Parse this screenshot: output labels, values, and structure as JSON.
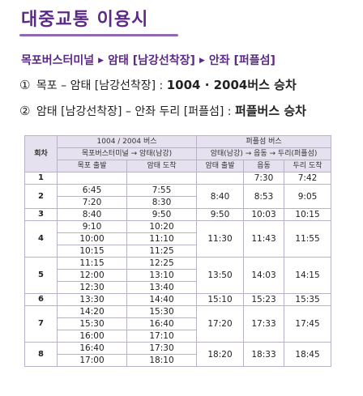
{
  "title": "대중교통 이용시",
  "route": {
    "stops": [
      "목포버스터미널",
      "암태 [남강선착장]",
      "안좌 [퍼플섬]"
    ],
    "arrow": "▶"
  },
  "line1": {
    "num": "①",
    "text": "목포 – 암태 [남강선착장] : ",
    "strong": "1004 · 2004버스 승차"
  },
  "line2": {
    "num": "②",
    "text": "암태 [남강선착장] – 안좌 두리 [퍼플섬] : ",
    "strong": "퍼플버스 승차"
  },
  "table": {
    "header": {
      "round": "회차",
      "group1": "1004 / 2004 버스",
      "group1_route": "목포버스터미널 → 암태(남강)",
      "group2": "퍼플섬 버스",
      "group2_route": "암태(남강) → 읍동 → 두리(퍼플섬)",
      "cols": [
        "목포 출발",
        "암태 도착",
        "암태 출발",
        "읍동",
        "두리 도착"
      ]
    },
    "rows": [
      {
        "round": "1",
        "a": [],
        "b": [
          "7:30",
          "7:42"
        ],
        "b0": ""
      },
      {
        "round": "2",
        "a": [
          [
            "6:45",
            "7:55"
          ],
          [
            "7:20",
            "8:30"
          ]
        ],
        "b": [
          "8:40",
          "8:53",
          "9:05"
        ]
      },
      {
        "round": "3",
        "a": [
          [
            "8:40",
            "9:50"
          ]
        ],
        "b": [
          "9:50",
          "10:03",
          "10:15"
        ]
      },
      {
        "round": "4",
        "a": [
          [
            "9:10",
            "10:20"
          ],
          [
            "10:00",
            "11:10"
          ],
          [
            "10:15",
            "11:25"
          ]
        ],
        "b": [
          "11:30",
          "11:43",
          "11:55"
        ]
      },
      {
        "round": "5",
        "a": [
          [
            "11:15",
            "12:25"
          ],
          [
            "12:00",
            "13:10"
          ],
          [
            "12:30",
            "13:40"
          ]
        ],
        "b": [
          "13:50",
          "14:03",
          "14:15"
        ]
      },
      {
        "round": "6",
        "a": [
          [
            "13:30",
            "14:40"
          ]
        ],
        "b": [
          "15:10",
          "15:23",
          "15:35"
        ]
      },
      {
        "round": "7",
        "a": [
          [
            "14:20",
            "15:30"
          ],
          [
            "15:30",
            "16:40"
          ],
          [
            "16:00",
            "17:10"
          ]
        ],
        "b": [
          "17:20",
          "17:33",
          "17:45"
        ]
      },
      {
        "round": "8",
        "a": [
          [
            "16:40",
            "17:30"
          ],
          [
            "17:00",
            "18:10"
          ]
        ],
        "b": [
          "18:20",
          "18:33",
          "18:45"
        ]
      }
    ]
  }
}
